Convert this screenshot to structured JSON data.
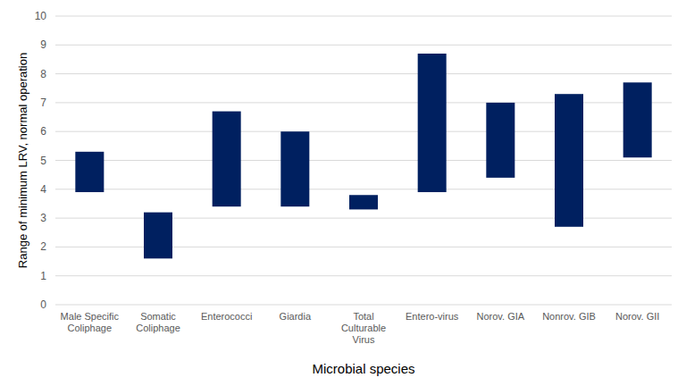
{
  "chart_data": {
    "type": "range_bar",
    "x_label": "Microbial species",
    "y_label": "Range of minimum LRV, normal operation",
    "categories": [
      "Male Specific Coliphage",
      "Somatic Coliphage",
      "Enterococci",
      "Giardia",
      "Total Culturable Virus",
      "Entero-virus",
      "Norov. GIA",
      "Nonrov. GIB",
      "Norov. GII"
    ],
    "low": [
      3.9,
      1.6,
      3.4,
      3.4,
      3.3,
      3.9,
      4.4,
      2.7,
      5.1
    ],
    "high": [
      5.3,
      3.2,
      6.7,
      6.0,
      3.8,
      8.7,
      7.0,
      7.3,
      7.7
    ],
    "color": "#002060",
    "ylim": [
      0,
      10
    ],
    "yticks": [
      0,
      1,
      2,
      3,
      4,
      5,
      6,
      7,
      8,
      9,
      10
    ],
    "grid": true
  }
}
